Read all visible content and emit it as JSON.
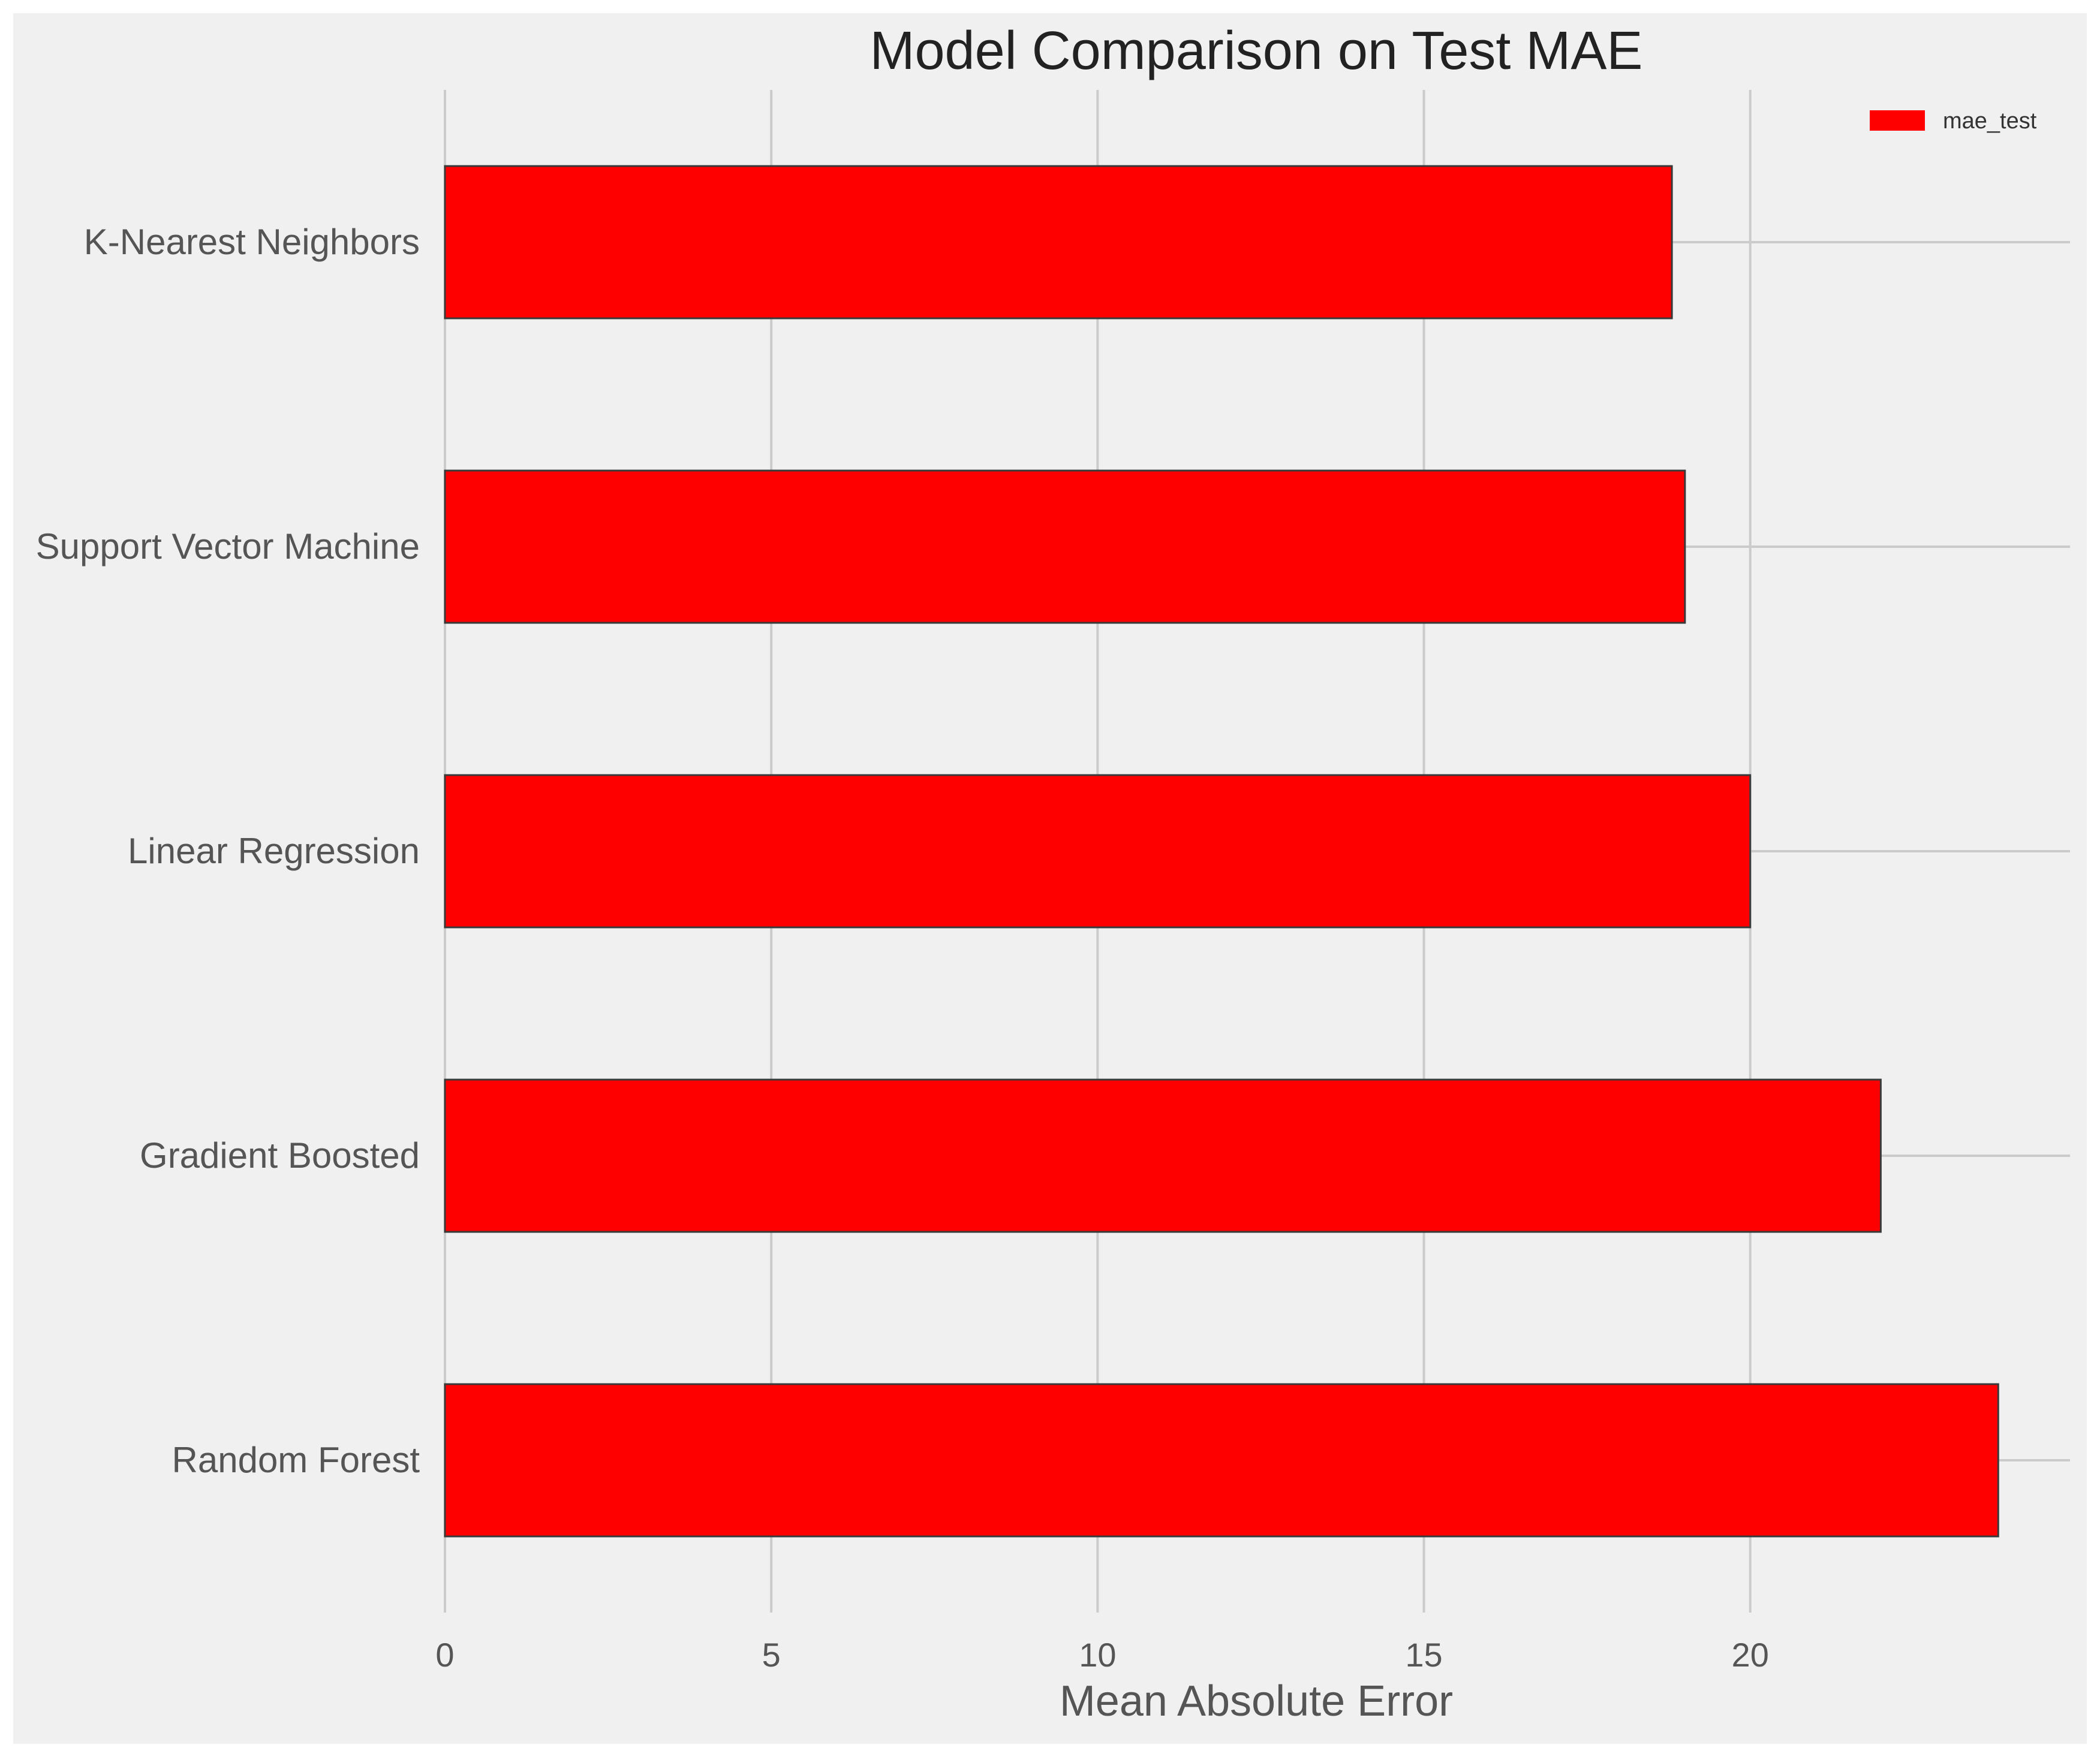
{
  "chart_data": {
    "type": "bar",
    "orientation": "horizontal",
    "title": "Model Comparison on Test MAE",
    "xlabel": "Mean Absolute Error",
    "ylabel": "",
    "categories": [
      "K-Nearest Neighbors",
      "Support Vector Machine",
      "Linear Regression",
      "Gradient Boosted",
      "Random Forest"
    ],
    "series": [
      {
        "name": "mae_test",
        "color": "#ff0000",
        "values": [
          18.8,
          19.0,
          20.0,
          22.0,
          23.8
        ]
      }
    ],
    "xlim": [
      0,
      24.9
    ],
    "xticks": [
      0,
      5,
      10,
      15,
      20
    ],
    "grid": true,
    "legend_position": "top-right",
    "background_color": "#f0f0f0"
  }
}
